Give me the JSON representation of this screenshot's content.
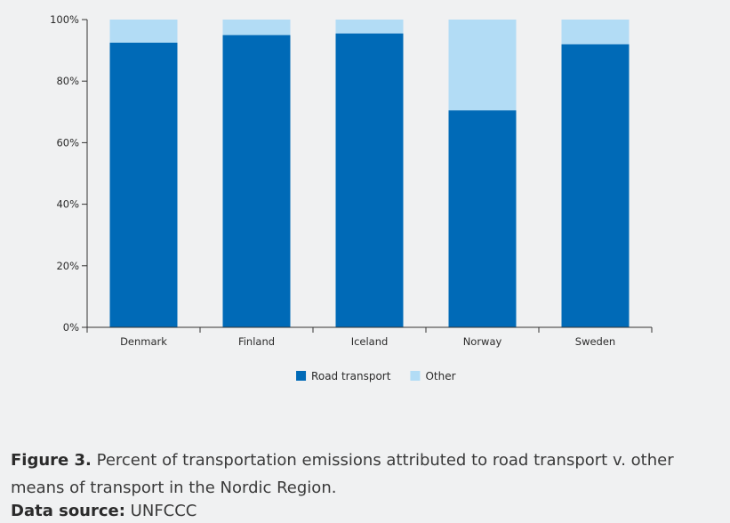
{
  "chart_data": {
    "type": "bar",
    "stacked": true,
    "categories": [
      "Denmark",
      "Finland",
      "Iceland",
      "Norway",
      "Sweden"
    ],
    "series": [
      {
        "name": "Road transport",
        "color": "#006ab7",
        "values": [
          92.5,
          95,
          95.5,
          70.5,
          92
        ]
      },
      {
        "name": "Other",
        "color": "#b2dcf5",
        "values": [
          7.5,
          5,
          4.5,
          29.5,
          8
        ]
      }
    ],
    "yticks": [
      "0%",
      "20%",
      "40%",
      "60%",
      "80%",
      "100%"
    ],
    "ylim": [
      0,
      100
    ],
    "legend_position": "bottom-center",
    "grid": false
  },
  "caption": {
    "label": "Figure 3.",
    "text": " Percent of transportation emissions attributed to road transport v. other means of transport in the Nordic Region."
  },
  "source": {
    "label": "Data source:",
    "text": " UNFCCC"
  }
}
